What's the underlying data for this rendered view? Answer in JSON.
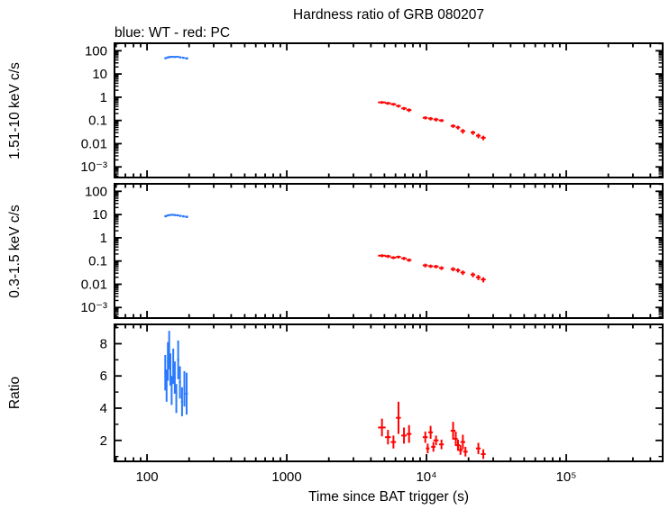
{
  "chart_data": {
    "type": "scatter",
    "title": "Hardness ratio of GRB 080207",
    "annotation": "blue: WT - red: PC",
    "xlabel": "Time since BAT trigger (s)",
    "x_scale": "log",
    "xlim": [
      58.5,
      490000
    ],
    "x_major_ticks": [
      100,
      1000,
      10000,
      100000
    ],
    "x_tick_labels": [
      "100",
      "1000",
      "10⁴",
      "10⁵"
    ],
    "series_colors": {
      "WT": "#2979ff",
      "PC": "#ff0000"
    },
    "panels": [
      {
        "ylabel": "1.51-10 keV c/s",
        "y_scale": "log",
        "ylim": [
          0.00035,
          210
        ],
        "y_major_ticks": [
          100,
          10,
          1,
          0.1,
          0.01,
          0.001
        ],
        "y_tick_labels": [
          "100",
          "10",
          "1",
          "0.1",
          "0.01",
          "10⁻³"
        ],
        "series": [
          {
            "name": "WT",
            "color": "#2979ff",
            "points": [
              [
                136,
                3,
                48,
                5
              ],
              [
                141,
                3,
                52,
                5
              ],
              [
                146,
                3,
                54,
                5
              ],
              [
                152,
                3,
                55,
                5
              ],
              [
                158,
                3,
                54,
                5
              ],
              [
                165,
                4,
                55,
                5
              ],
              [
                173,
                4,
                52,
                5
              ],
              [
                182,
                4,
                50,
                5
              ],
              [
                192,
                5,
                47,
                5
              ]
            ]
          },
          {
            "name": "PC",
            "color": "#ff0000",
            "points": [
              [
                4800,
                300,
                0.6,
                0.08
              ],
              [
                5300,
                250,
                0.55,
                0.08
              ],
              [
                5800,
                250,
                0.5,
                0.07
              ],
              [
                6300,
                250,
                0.42,
                0.06
              ],
              [
                6900,
                300,
                0.33,
                0.05
              ],
              [
                7500,
                300,
                0.28,
                0.05
              ],
              [
                9800,
                400,
                0.13,
                0.02
              ],
              [
                10700,
                400,
                0.12,
                0.02
              ],
              [
                11700,
                500,
                0.11,
                0.02
              ],
              [
                12800,
                500,
                0.1,
                0.015
              ],
              [
                15500,
                600,
                0.058,
                0.01
              ],
              [
                16800,
                600,
                0.05,
                0.009
              ],
              [
                18200,
                700,
                0.035,
                0.008
              ],
              [
                21500,
                800,
                0.03,
                0.006
              ],
              [
                23500,
                900,
                0.022,
                0.005
              ],
              [
                25500,
                1000,
                0.018,
                0.004
              ]
            ]
          }
        ]
      },
      {
        "ylabel": "0.3-1.5 keV c/s",
        "y_scale": "log",
        "ylim": [
          0.00035,
          210
        ],
        "y_major_ticks": [
          100,
          10,
          1,
          0.1,
          0.01,
          0.001
        ],
        "y_tick_labels": [
          "100",
          "10",
          "1",
          "0.1",
          "0.01",
          "10⁻³"
        ],
        "series": [
          {
            "name": "WT",
            "color": "#2979ff",
            "points": [
              [
                136,
                3,
                8.5,
                0.9
              ],
              [
                141,
                3,
                9.2,
                0.9
              ],
              [
                146,
                3,
                9.6,
                0.9
              ],
              [
                152,
                3,
                9.8,
                0.9
              ],
              [
                158,
                3,
                9.5,
                0.9
              ],
              [
                165,
                4,
                9.3,
                0.9
              ],
              [
                173,
                4,
                8.8,
                0.9
              ],
              [
                182,
                4,
                8.4,
                0.9
              ],
              [
                192,
                5,
                8.0,
                0.9
              ]
            ]
          },
          {
            "name": "PC",
            "color": "#ff0000",
            "points": [
              [
                4800,
                300,
                0.17,
                0.025
              ],
              [
                5300,
                250,
                0.16,
                0.025
              ],
              [
                5800,
                250,
                0.14,
                0.02
              ],
              [
                6300,
                250,
                0.15,
                0.02
              ],
              [
                6900,
                300,
                0.13,
                0.02
              ],
              [
                7500,
                300,
                0.11,
                0.018
              ],
              [
                9800,
                400,
                0.065,
                0.012
              ],
              [
                10700,
                400,
                0.06,
                0.01
              ],
              [
                11700,
                500,
                0.058,
                0.01
              ],
              [
                12800,
                500,
                0.05,
                0.009
              ],
              [
                15500,
                600,
                0.045,
                0.009
              ],
              [
                16800,
                600,
                0.04,
                0.008
              ],
              [
                18200,
                700,
                0.032,
                0.007
              ],
              [
                21500,
                800,
                0.026,
                0.006
              ],
              [
                23500,
                900,
                0.02,
                0.005
              ],
              [
                25500,
                1000,
                0.016,
                0.004
              ]
            ]
          }
        ]
      },
      {
        "ylabel": "Ratio",
        "y_scale": "linear",
        "ylim": [
          0.7,
          9.2
        ],
        "y_major_ticks": [
          2,
          4,
          6,
          8
        ],
        "y_tick_labels": [
          "2",
          "4",
          "6",
          "8"
        ],
        "y_minor_ticks": [
          1,
          3,
          5,
          7,
          9
        ],
        "series": [
          {
            "name": "WT",
            "color": "#2979ff",
            "points": [
              [
                135,
                2,
                6.2,
                1.1
              ],
              [
                138,
                2,
                5.4,
                1.0
              ],
              [
                141,
                2,
                6.9,
                1.2
              ],
              [
                144,
                2,
                7.6,
                1.2
              ],
              [
                147,
                2,
                6.4,
                1.0
              ],
              [
                150,
                2,
                5.1,
                0.9
              ],
              [
                154,
                2,
                6.6,
                1.1
              ],
              [
                158,
                2,
                5.9,
                1.0
              ],
              [
                162,
                2,
                4.6,
                0.9
              ],
              [
                167,
                3,
                7.0,
                1.2
              ],
              [
                172,
                3,
                5.6,
                1.0
              ],
              [
                178,
                3,
                4.4,
                0.9
              ],
              [
                185,
                3,
                5.2,
                1.1
              ],
              [
                192,
                4,
                4.9,
                1.3
              ]
            ]
          },
          {
            "name": "PC",
            "color": "#ff0000",
            "points": [
              [
                4800,
                300,
                2.8,
                0.55
              ],
              [
                5300,
                250,
                2.2,
                0.45
              ],
              [
                5800,
                250,
                1.9,
                0.4
              ],
              [
                6300,
                250,
                3.4,
                1.0
              ],
              [
                6900,
                300,
                2.3,
                0.5
              ],
              [
                7500,
                300,
                2.4,
                0.55
              ],
              [
                9800,
                400,
                2.2,
                0.35
              ],
              [
                10200,
                300,
                1.5,
                0.3
              ],
              [
                10700,
                400,
                2.5,
                0.4
              ],
              [
                11200,
                400,
                1.6,
                0.3
              ],
              [
                11700,
                500,
                2.0,
                0.3
              ],
              [
                12800,
                500,
                1.75,
                0.3
              ],
              [
                15500,
                600,
                2.6,
                0.55
              ],
              [
                16200,
                500,
                2.1,
                0.45
              ],
              [
                16800,
                600,
                1.7,
                0.35
              ],
              [
                17500,
                600,
                1.4,
                0.3
              ],
              [
                18200,
                700,
                1.9,
                0.45
              ],
              [
                19000,
                700,
                1.3,
                0.3
              ],
              [
                23500,
                900,
                1.5,
                0.35
              ],
              [
                25500,
                1000,
                1.15,
                0.3
              ]
            ]
          }
        ]
      }
    ]
  }
}
